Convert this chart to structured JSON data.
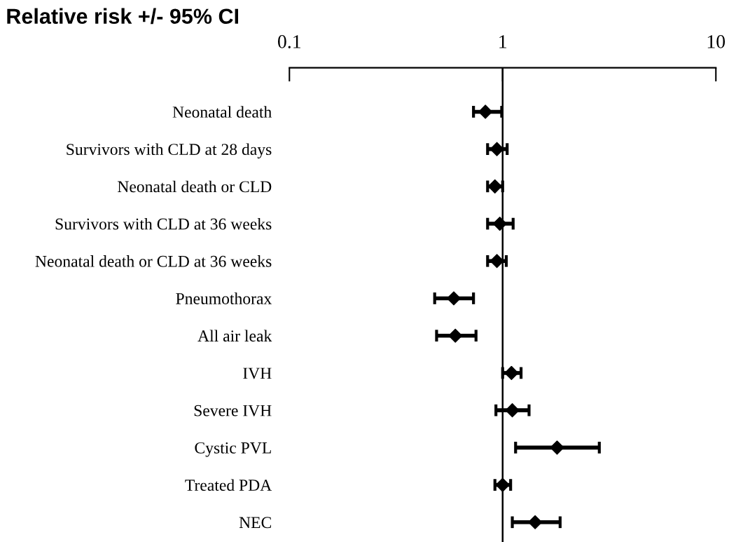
{
  "chart_data": {
    "type": "scatter",
    "title": "Relative risk +/- 95% CI",
    "orientation": "horizontal",
    "log": "x",
    "categories": [
      "Neonatal death",
      "Survivors with CLD at 28 days",
      "Neonatal death or CLD",
      "Survivors with CLD at 36 weeks",
      "Neonatal death or CLD at 36 weeks",
      "Pneumothorax",
      "All air leak",
      "IVH",
      "Severe IVH",
      "Cystic PVL",
      "Treated PDA",
      "NEC"
    ],
    "values": [
      0.83,
      0.94,
      0.92,
      0.97,
      0.94,
      0.59,
      0.6,
      1.1,
      1.11,
      1.8,
      1.0,
      1.42
    ],
    "errors": [
      [
        0.73,
        0.99
      ],
      [
        0.85,
        1.05
      ],
      [
        0.85,
        1.0
      ],
      [
        0.85,
        1.12
      ],
      [
        0.85,
        1.04
      ],
      [
        0.48,
        0.73
      ],
      [
        0.49,
        0.75
      ],
      [
        1.0,
        1.22
      ],
      [
        0.93,
        1.33
      ],
      [
        1.15,
        2.84
      ],
      [
        0.92,
        1.09
      ],
      [
        1.11,
        1.86
      ]
    ],
    "color": "#000000",
    "marker": "diamond",
    "xlim": [
      0.1,
      10
    ],
    "xticks": [
      0.1,
      1,
      10
    ],
    "ref_lines": [
      {
        "axis": "x",
        "value": 1,
        "color": "#000000",
        "line_style": "solid"
      }
    ],
    "grid": false,
    "legend": false
  }
}
